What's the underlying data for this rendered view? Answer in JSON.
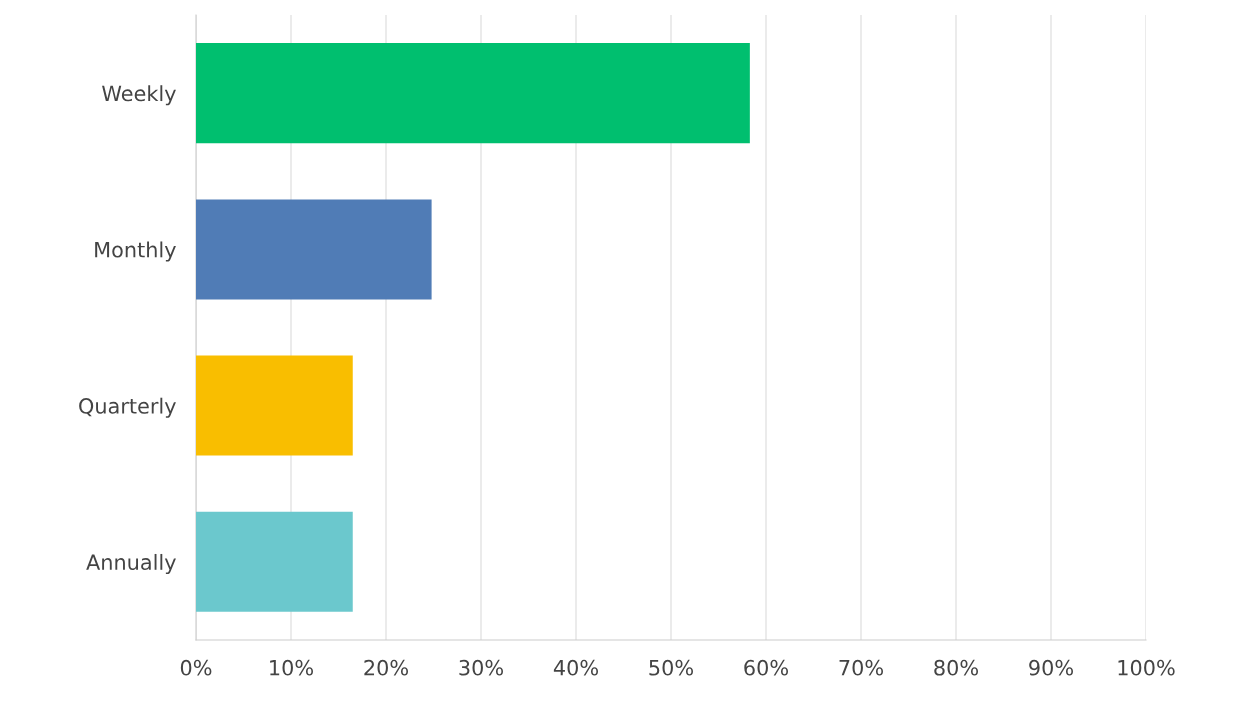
{
  "chart_data": {
    "type": "bar",
    "orientation": "horizontal",
    "categories": [
      "Weekly",
      "Monthly",
      "Quarterly",
      "Annually"
    ],
    "values": [
      58.3,
      24.8,
      16.5,
      16.5
    ],
    "colors": [
      "#00bf6f",
      "#507cb6",
      "#f9be00",
      "#6bc8cd"
    ],
    "xlim": [
      0,
      100
    ],
    "xticks": [
      {
        "value": 0,
        "label": "0%"
      },
      {
        "value": 10,
        "label": "10%"
      },
      {
        "value": 20,
        "label": "20%"
      },
      {
        "value": 30,
        "label": "30%"
      },
      {
        "value": 40,
        "label": "40%"
      },
      {
        "value": 50,
        "label": "50%"
      },
      {
        "value": 60,
        "label": "60%"
      },
      {
        "value": 70,
        "label": "70%"
      },
      {
        "value": 80,
        "label": "80%"
      },
      {
        "value": 90,
        "label": "90%"
      },
      {
        "value": 100,
        "label": "100%"
      }
    ],
    "grid": "x"
  }
}
